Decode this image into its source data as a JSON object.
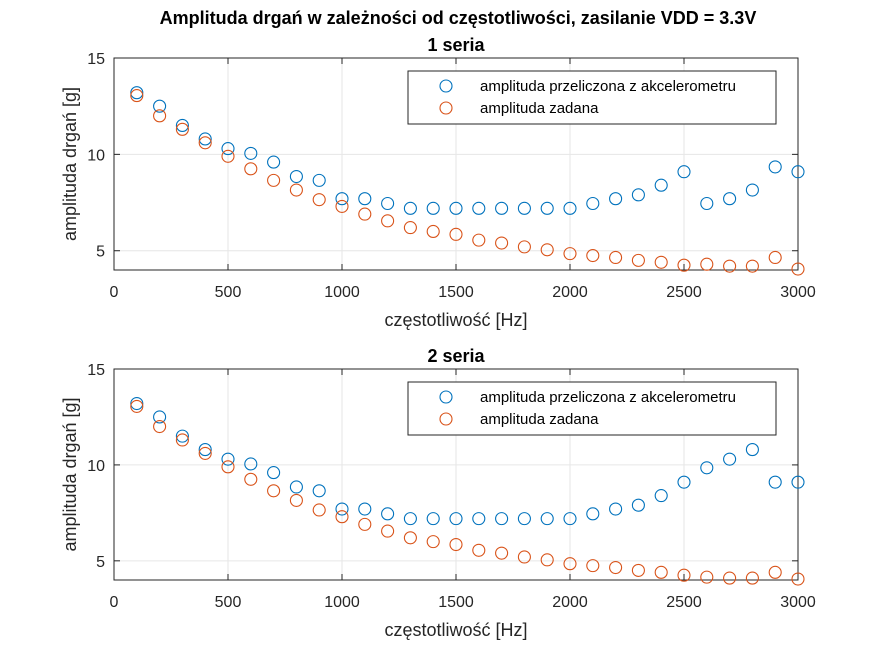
{
  "figure_title": "Amplituda drgań w zależności od częstotliwości, zasilanie VDD = 3.3V",
  "colors": {
    "series1": "#0072BD",
    "series2": "#D95319",
    "grid": "#e6e6e6",
    "axis": "#262626"
  },
  "chart_data": [
    {
      "type": "scatter",
      "title": "1 seria",
      "xlabel": "częstotliwość [Hz]",
      "ylabel": "amplituda drgań [g]",
      "xlim": [
        0,
        3000
      ],
      "ylim": [
        4,
        15
      ],
      "xticks": [
        "0",
        "500",
        "1000",
        "1500",
        "2000",
        "2500",
        "3000"
      ],
      "yticks": [
        "5",
        "10",
        "15"
      ],
      "grid": true,
      "legend_position": "top-right",
      "x": [
        100,
        200,
        300,
        400,
        500,
        600,
        700,
        800,
        900,
        1000,
        1100,
        1200,
        1300,
        1400,
        1500,
        1600,
        1700,
        1800,
        1900,
        2000,
        2100,
        2200,
        2300,
        2400,
        2500,
        2600,
        2700,
        2800,
        2900,
        3000
      ],
      "series": [
        {
          "name": "amplituda przeliczona z akcelerometru",
          "values": [
            13.2,
            12.5,
            11.5,
            10.8,
            10.3,
            10.05,
            9.6,
            8.85,
            8.65,
            7.7,
            7.7,
            7.45,
            7.2,
            7.2,
            7.2,
            7.2,
            7.2,
            7.2,
            7.2,
            7.2,
            7.45,
            7.7,
            7.9,
            8.4,
            9.1,
            7.45,
            7.7,
            8.15,
            9.35,
            9.1
          ]
        },
        {
          "name": "amplituda zadana",
          "values": [
            13.05,
            12.0,
            11.3,
            10.6,
            9.9,
            9.25,
            8.65,
            8.15,
            7.65,
            7.3,
            6.9,
            6.55,
            6.2,
            6.0,
            5.85,
            5.55,
            5.4,
            5.2,
            5.05,
            4.85,
            4.75,
            4.65,
            4.5,
            4.4,
            4.25,
            4.3,
            4.2,
            4.2,
            4.65,
            4.05
          ]
        }
      ]
    },
    {
      "type": "scatter",
      "title": "2 seria",
      "xlabel": "częstotliwość [Hz]",
      "ylabel": "amplituda drgań [g]",
      "xlim": [
        0,
        3000
      ],
      "ylim": [
        4,
        15
      ],
      "xticks": [
        "0",
        "500",
        "1000",
        "1500",
        "2000",
        "2500",
        "3000"
      ],
      "yticks": [
        "5",
        "10",
        "15"
      ],
      "grid": true,
      "legend_position": "top-right",
      "x": [
        100,
        200,
        300,
        400,
        500,
        600,
        700,
        800,
        900,
        1000,
        1100,
        1200,
        1300,
        1400,
        1500,
        1600,
        1700,
        1800,
        1900,
        2000,
        2100,
        2200,
        2300,
        2400,
        2500,
        2600,
        2700,
        2800,
        2900,
        3000
      ],
      "series": [
        {
          "name": "amplituda przeliczona z akcelerometru",
          "values": [
            13.2,
            12.5,
            11.5,
            10.8,
            10.3,
            10.05,
            9.6,
            8.85,
            8.65,
            7.7,
            7.7,
            7.45,
            7.2,
            7.2,
            7.2,
            7.2,
            7.2,
            7.2,
            7.2,
            7.2,
            7.45,
            7.7,
            7.9,
            8.4,
            9.1,
            9.85,
            10.3,
            10.8,
            9.1,
            9.1
          ]
        },
        {
          "name": "amplituda zadana",
          "values": [
            13.05,
            12.0,
            11.3,
            10.6,
            9.9,
            9.25,
            8.65,
            8.15,
            7.65,
            7.3,
            6.9,
            6.55,
            6.2,
            6.0,
            5.85,
            5.55,
            5.4,
            5.2,
            5.05,
            4.85,
            4.75,
            4.65,
            4.5,
            4.4,
            4.25,
            4.15,
            4.1,
            4.1,
            4.4,
            4.05
          ]
        }
      ]
    }
  ]
}
